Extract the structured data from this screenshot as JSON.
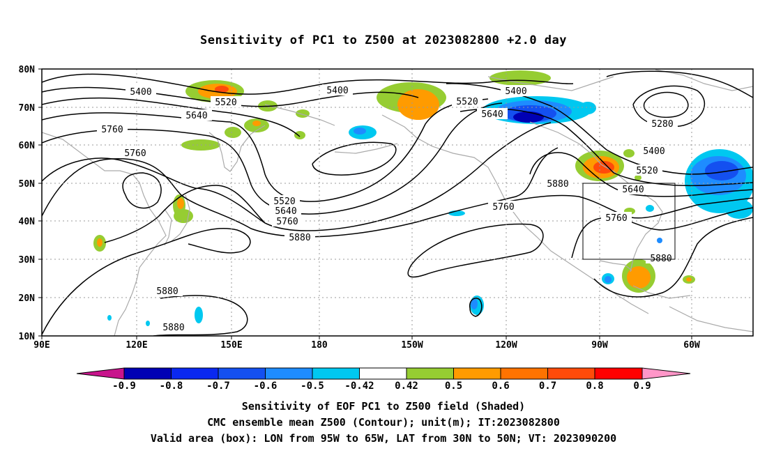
{
  "title": "Sensitivity of PC1 to Z500 at 2023082800 +2.0 day",
  "map": {
    "lon_labels": [
      "90E",
      "120E",
      "150E",
      "180",
      "150W",
      "120W",
      "90W",
      "60W"
    ],
    "lat_labels": [
      "80N",
      "70N",
      "60N",
      "50N",
      "40N",
      "30N",
      "20N",
      "10N"
    ],
    "contour_labels": [
      {
        "text": "5400"
      },
      {
        "text": "5400"
      },
      {
        "text": "5400"
      },
      {
        "text": "5400"
      },
      {
        "text": "5520"
      },
      {
        "text": "5520"
      },
      {
        "text": "5520"
      },
      {
        "text": "5520"
      },
      {
        "text": "5640"
      },
      {
        "text": "5640"
      },
      {
        "text": "5640"
      },
      {
        "text": "5640"
      },
      {
        "text": "5760"
      },
      {
        "text": "5760"
      },
      {
        "text": "5760"
      },
      {
        "text": "5760"
      },
      {
        "text": "5760"
      },
      {
        "text": "5880"
      },
      {
        "text": "5880"
      },
      {
        "text": "5880"
      },
      {
        "text": "5880"
      },
      {
        "text": "5880"
      },
      {
        "text": "5280"
      }
    ],
    "valid_box": {
      "lon_range": "95W to 65W",
      "lat_range": "30N to 50N"
    }
  },
  "colorbar": {
    "labels": [
      "-0.9",
      "-0.8",
      "-0.7",
      "-0.6",
      "-0.5",
      "-0.42",
      "0.42",
      "0.5",
      "0.6",
      "0.7",
      "0.8",
      "0.9"
    ],
    "colors": [
      "#0000b4",
      "#0a28f0",
      "#1450f0",
      "#1e8cff",
      "#00c8f0",
      "#ffffff",
      "#96cd32",
      "#ff9b00",
      "#ff7300",
      "#ff4b0a",
      "#ff0000"
    ],
    "low_extend_color": "#c8148c",
    "high_extend_color": "#ff96c8"
  },
  "captions": [
    "Sensitivity of EOF PC1 to Z500 field (Shaded)",
    "CMC ensemble mean Z500 (Contour); unit(m); IT:2023082800",
    "Valid area (box): LON from 95W to 65W, LAT from 30N to 50N; VT: 2023090200"
  ],
  "colors": {
    "contour": "#000000",
    "coast": "#aaaaaa",
    "grid": "#9a9a9a"
  }
}
